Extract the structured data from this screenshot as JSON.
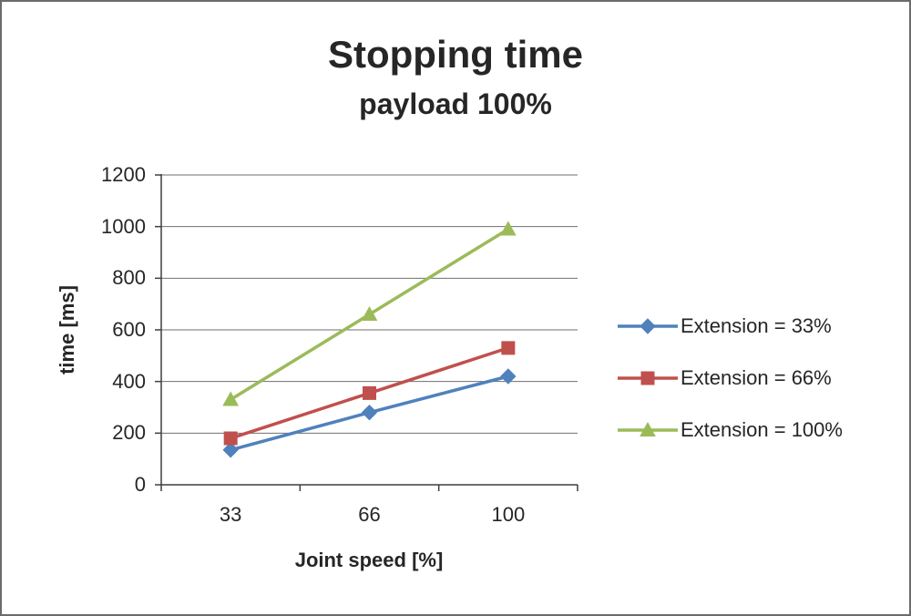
{
  "chart_data": {
    "type": "line",
    "title": "Stopping time",
    "subtitle": "payload 100%",
    "xlabel": "Joint speed [%]",
    "ylabel": "time [ms]",
    "categories": [
      "33",
      "66",
      "100"
    ],
    "ylim": [
      0,
      1200
    ],
    "ytick_step": 200,
    "grid": true,
    "legend_position": "right",
    "series": [
      {
        "name": "Extension = 33%",
        "color": "#4F81BD",
        "marker": "diamond",
        "values": [
          135,
          280,
          420
        ]
      },
      {
        "name": "Extension = 66%",
        "color": "#C0504D",
        "marker": "square",
        "values": [
          180,
          355,
          530
        ]
      },
      {
        "name": "Extension = 100%",
        "color": "#9BBB59",
        "marker": "triangle",
        "values": [
          330,
          660,
          990
        ]
      }
    ]
  },
  "style": {
    "grid_color": "#6f6f6f",
    "axis_color": "#3f3f3f",
    "text_color": "#262626",
    "background": "#ffffff",
    "frame_border": "#6b6b6b"
  }
}
